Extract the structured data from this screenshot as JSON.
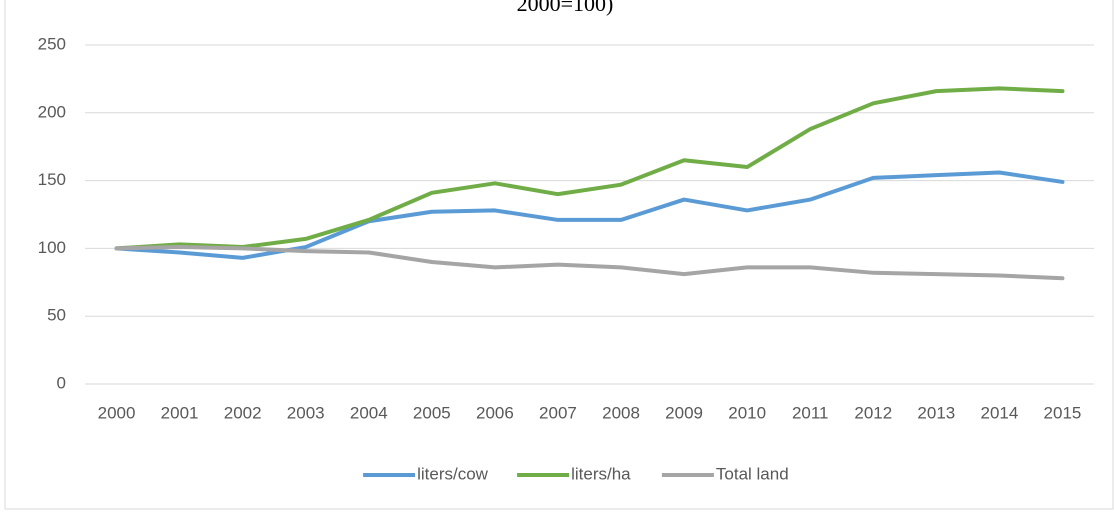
{
  "chart_data": {
    "type": "line",
    "title": "2000=100)",
    "categories": [
      "2000",
      "2001",
      "2002",
      "2003",
      "2004",
      "2005",
      "2006",
      "2007",
      "2008",
      "2009",
      "2010",
      "2011",
      "2012",
      "2013",
      "2014",
      "2015"
    ],
    "series": [
      {
        "name": "liters/cow",
        "color": "#5b9bd5",
        "values": [
          100,
          97,
          93,
          101,
          120,
          127,
          128,
          121,
          121,
          136,
          128,
          136,
          152,
          154,
          156,
          149
        ]
      },
      {
        "name": "liters/ha",
        "color": "#70ad47",
        "values": [
          100,
          103,
          101,
          107,
          121,
          141,
          148,
          140,
          147,
          165,
          160,
          188,
          207,
          216,
          218,
          216
        ]
      },
      {
        "name": "Total land",
        "color": "#a5a5a5",
        "values": [
          100,
          101,
          100,
          98,
          97,
          90,
          86,
          88,
          86,
          81,
          86,
          86,
          82,
          81,
          80,
          78
        ]
      }
    ],
    "ylim": [
      0,
      250
    ],
    "yticks": [
      0,
      50,
      100,
      150,
      200,
      250
    ],
    "grid": true,
    "legend": "bottom"
  }
}
